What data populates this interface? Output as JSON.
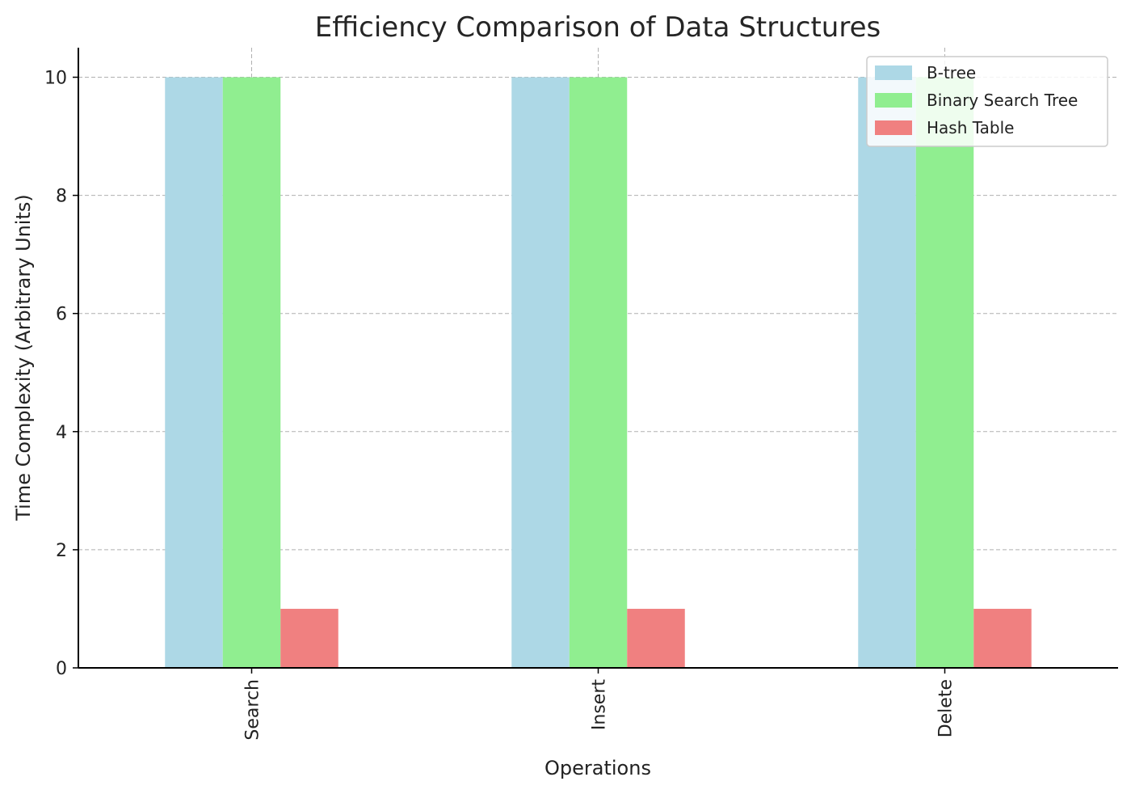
{
  "chart_data": {
    "type": "bar",
    "title": "Efficiency Comparison of Data Structures",
    "xlabel": "Operations",
    "ylabel": "Time Complexity (Arbitrary Units)",
    "categories": [
      "Search",
      "Insert",
      "Delete"
    ],
    "series": [
      {
        "name": "B-tree",
        "values": [
          10,
          10,
          10
        ],
        "color": "#add8e6"
      },
      {
        "name": "Binary Search Tree",
        "values": [
          10,
          10,
          10
        ],
        "color": "#90ee90"
      },
      {
        "name": "Hash Table",
        "values": [
          1,
          1,
          1
        ],
        "color": "#f08080"
      }
    ],
    "yticks": [
      "0",
      "2",
      "4",
      "6",
      "8",
      "10"
    ],
    "ylim": [
      0,
      10.5
    ],
    "grid": true,
    "legend_position": "top-right"
  }
}
